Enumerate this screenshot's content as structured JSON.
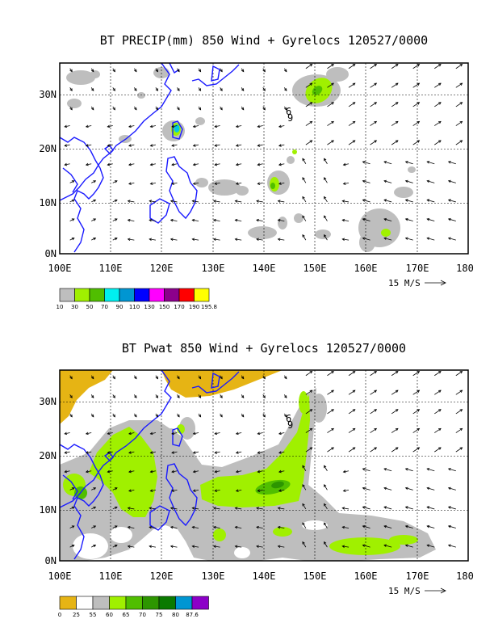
{
  "panels": [
    {
      "title": "BT PRECIP(mm) 850 Wind + Gyrelocs 120527/0000",
      "x_ticks": [
        "100E",
        "110E",
        "120E",
        "130E",
        "140E",
        "150E",
        "160E",
        "170E",
        "180"
      ],
      "y_ticks": [
        "30N",
        "20N",
        "10N",
        "0N"
      ],
      "wind_scale_label": "15 M/S",
      "storm_symbol": "6",
      "storm_id": "9",
      "colorbar": {
        "colors": [
          "#bebebe",
          "#a0f000",
          "#50be00",
          "#00f0f0",
          "#0096d2",
          "#0000ff",
          "#ff00ff",
          "#8c008c",
          "#ff0000",
          "#ffff00"
        ],
        "labels": [
          "10",
          "30",
          "50",
          "70",
          "90",
          "110",
          "130",
          "150",
          "170",
          "190",
          "195.8"
        ]
      }
    },
    {
      "title": "BT Pwat 850 Wind + Gyrelocs 120527/0000",
      "x_ticks": [
        "100E",
        "110E",
        "120E",
        "130E",
        "140E",
        "150E",
        "160E",
        "170E",
        "180"
      ],
      "y_ticks": [
        "30N",
        "20N",
        "10N",
        "0N"
      ],
      "wind_scale_label": "15 M/S",
      "storm_symbol": "6",
      "storm_id": "9",
      "colorbar": {
        "colors": [
          "#e6b414",
          "#ffffff",
          "#bebebe",
          "#a0f000",
          "#50be00",
          "#2d9600",
          "#0a7a00",
          "#0096d2",
          "#8c00c8"
        ],
        "labels": [
          "0",
          "25",
          "55",
          "60",
          "65",
          "70",
          "75",
          "80",
          "87.6"
        ]
      }
    }
  ]
}
